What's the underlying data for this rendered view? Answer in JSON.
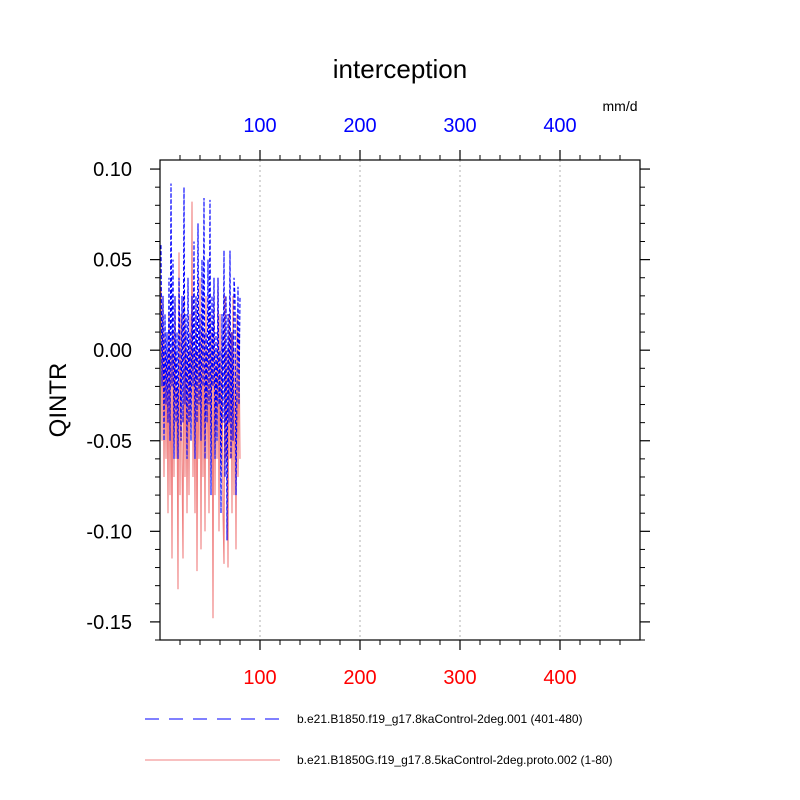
{
  "chart_data": {
    "type": "line",
    "title": "interception",
    "ylabel": "QINTR",
    "units_label": "mm/d",
    "xlim": [
      0,
      480
    ],
    "ylim": [
      -0.16,
      0.105
    ],
    "x_ticks_bottom": [
      100,
      200,
      300,
      400
    ],
    "x_tick_labels_bottom": [
      "100",
      "200",
      "300",
      "400"
    ],
    "x_ticks_top": [
      100,
      200,
      300,
      400
    ],
    "x_tick_labels_top": [
      "100",
      "200",
      "300",
      "400"
    ],
    "y_ticks": [
      0.1,
      0.05,
      0.0,
      -0.05,
      -0.1,
      -0.15
    ],
    "y_tick_labels": [
      "0.10",
      "0.05",
      "0.00",
      "-0.05",
      "-0.10",
      "-0.15"
    ],
    "grid": "vertical-dotted",
    "colors": {
      "top_axis": "#0000ff",
      "bottom_axis": "#ff0000",
      "blue_series": "#0000ff",
      "red_series": "#f08080"
    },
    "series": [
      {
        "name": "b.e21.B1850.f19_g17.8kaControl-2deg.001 (401-480)",
        "style": "dashed",
        "color": "#0000ff",
        "x": [
          1,
          2,
          3,
          4,
          5,
          6,
          7,
          8,
          9,
          10,
          11,
          12,
          13,
          14,
          15,
          16,
          17,
          18,
          19,
          20,
          21,
          22,
          23,
          24,
          25,
          26,
          27,
          28,
          29,
          30,
          31,
          32,
          33,
          34,
          35,
          36,
          37,
          38,
          39,
          40,
          41,
          42,
          43,
          44,
          45,
          46,
          47,
          48,
          49,
          50,
          51,
          52,
          53,
          54,
          55,
          56,
          57,
          58,
          59,
          60,
          61,
          62,
          63,
          64,
          65,
          66,
          67,
          68,
          69,
          70,
          71,
          72,
          73,
          74,
          75,
          76,
          77,
          78,
          79,
          80
        ],
        "y": [
          0.058,
          -0.02,
          0.03,
          -0.05,
          0.02,
          -0.03,
          0.01,
          -0.04,
          0.04,
          -0.05,
          0.092,
          -0.02,
          0.05,
          -0.06,
          0.03,
          -0.04,
          0.01,
          -0.06,
          0.04,
          0.0,
          -0.05,
          0.03,
          -0.04,
          0.09,
          -0.03,
          0.02,
          -0.06,
          0.04,
          -0.04,
          0.01,
          -0.05,
          0.03,
          -0.02,
          0.06,
          -0.06,
          0.03,
          -0.04,
          0.07,
          -0.03,
          0.02,
          -0.05,
          0.05,
          -0.02,
          0.084,
          -0.06,
          0.01,
          -0.04,
          0.05,
          -0.03,
          0.083,
          -0.08,
          0.03,
          -0.02,
          0.04,
          -0.06,
          0.01,
          -0.05,
          0.04,
          -0.03,
          0.0,
          -0.09,
          0.02,
          -0.04,
          0.055,
          -0.07,
          0.03,
          -0.105,
          0.02,
          -0.04,
          0.055,
          -0.06,
          0.01,
          -0.05,
          0.04,
          0.03,
          -0.08,
          -0.02,
          0.035,
          -0.03,
          0.03
        ]
      },
      {
        "name": "b.e21.B1850G.f19_g17.8.5kaControl-2deg.proto.002 (1-80)",
        "style": "solid",
        "color": "#f08080",
        "x": [
          1,
          2,
          3,
          4,
          5,
          6,
          7,
          8,
          9,
          10,
          11,
          12,
          13,
          14,
          15,
          16,
          17,
          18,
          19,
          20,
          21,
          22,
          23,
          24,
          25,
          26,
          27,
          28,
          29,
          30,
          31,
          32,
          33,
          34,
          35,
          36,
          37,
          38,
          39,
          40,
          41,
          42,
          43,
          44,
          45,
          46,
          47,
          48,
          49,
          50,
          51,
          52,
          53,
          54,
          55,
          56,
          57,
          58,
          59,
          60,
          61,
          62,
          63,
          64,
          65,
          66,
          67,
          68,
          69,
          70,
          71,
          72,
          73,
          74,
          75,
          76,
          77,
          78,
          79,
          80
        ],
        "y": [
          0.035,
          -0.05,
          0.03,
          -0.07,
          0.01,
          -0.06,
          0.0,
          -0.09,
          0.02,
          -0.08,
          0.0,
          -0.115,
          0.01,
          -0.07,
          0.03,
          -0.06,
          -0.02,
          -0.132,
          0.054,
          -0.08,
          0.02,
          -0.06,
          -0.115,
          0.03,
          -0.07,
          0.01,
          -0.09,
          0.0,
          -0.08,
          0.02,
          -0.05,
          0.082,
          -0.07,
          0.0,
          -0.09,
          0.03,
          -0.122,
          0.0,
          -0.06,
          0.04,
          -0.11,
          0.02,
          -0.07,
          0.01,
          -0.1,
          0.03,
          -0.06,
          0.0,
          -0.09,
          0.02,
          -0.07,
          0.01,
          -0.148,
          0.03,
          -0.08,
          0.0,
          -0.06,
          0.04,
          -0.1,
          0.02,
          -0.07,
          0.01,
          -0.09,
          -0.118,
          0.03,
          -0.06,
          0.0,
          -0.12,
          0.02,
          -0.06,
          0.01,
          -0.09,
          0.03,
          -0.08,
          0.0,
          -0.11,
          0.02,
          -0.07,
          0.01,
          -0.06
        ]
      }
    ]
  }
}
